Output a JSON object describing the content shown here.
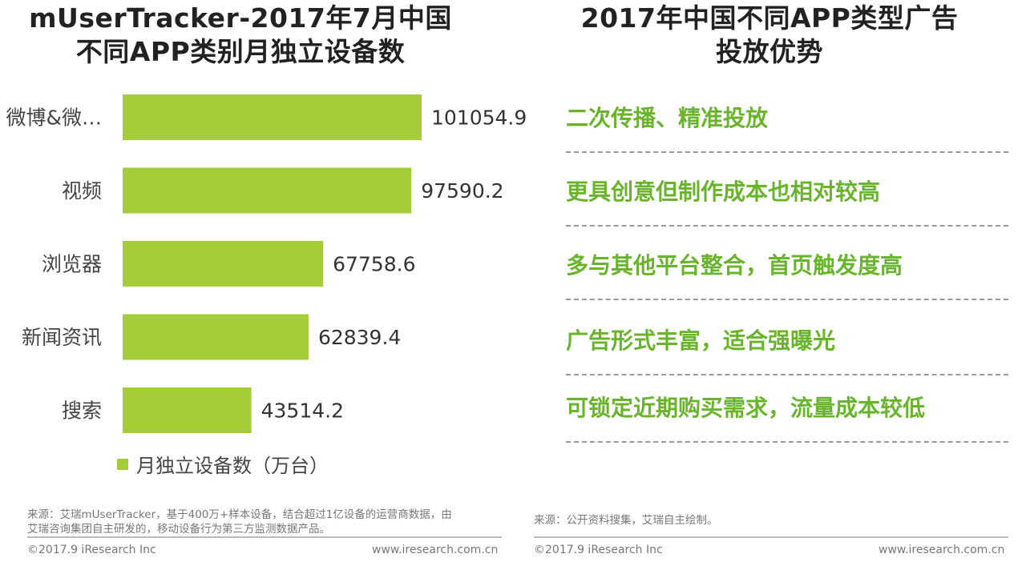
{
  "left_panel": {
    "title_line1": "mUserTracker-2017年7月中国",
    "title_line2": "不同APP类别月独立设备数"
  },
  "right_panel": {
    "title_line1": "2017年中国不同APP类型广告",
    "title_line2": "投放优势",
    "advantages": [
      "二次传播、精准投放",
      "更具创意但制作成本也相对较高",
      "多与其他平台整合，首页触发度高",
      "广告形式丰富，适合强曝光",
      "可锁定近期购买需求，流量成本较低"
    ]
  },
  "chart_data": {
    "type": "bar",
    "orientation": "horizontal",
    "categories": [
      "微博&微…",
      "视频",
      "浏览器",
      "新闻资讯",
      "搜索"
    ],
    "series": [
      {
        "name": "月独立设备数（万台）",
        "values": [
          101054.9,
          97590.2,
          67758.6,
          62839.4,
          43514.2
        ]
      }
    ],
    "value_labels": [
      "101054.9",
      "97590.2",
      "67758.6",
      "62839.4",
      "43514.2"
    ],
    "xlim": [
      0,
      101054.9
    ],
    "bar_color": "#a5cd39",
    "legend_position": "bottom-left",
    "grid": false
  },
  "footer": {
    "left_source_line1": "来源：艾瑞mUserTracker，基于400万+样本设备，结合超过1亿设备的运营商数据，由",
    "left_source_line2": "艾瑞咨询集团自主研发的，移动设备行为第三方监测数据产品。",
    "right_source": "来源：公开资料搜集，艾瑞自主绘制。",
    "left_copyright": "©2017.9 iResearch Inc",
    "left_url": "www.iresearch.com.cn",
    "right_copyright": "©2017.9 iResearch Inc",
    "right_url": "www.iresearch.com.cn"
  }
}
